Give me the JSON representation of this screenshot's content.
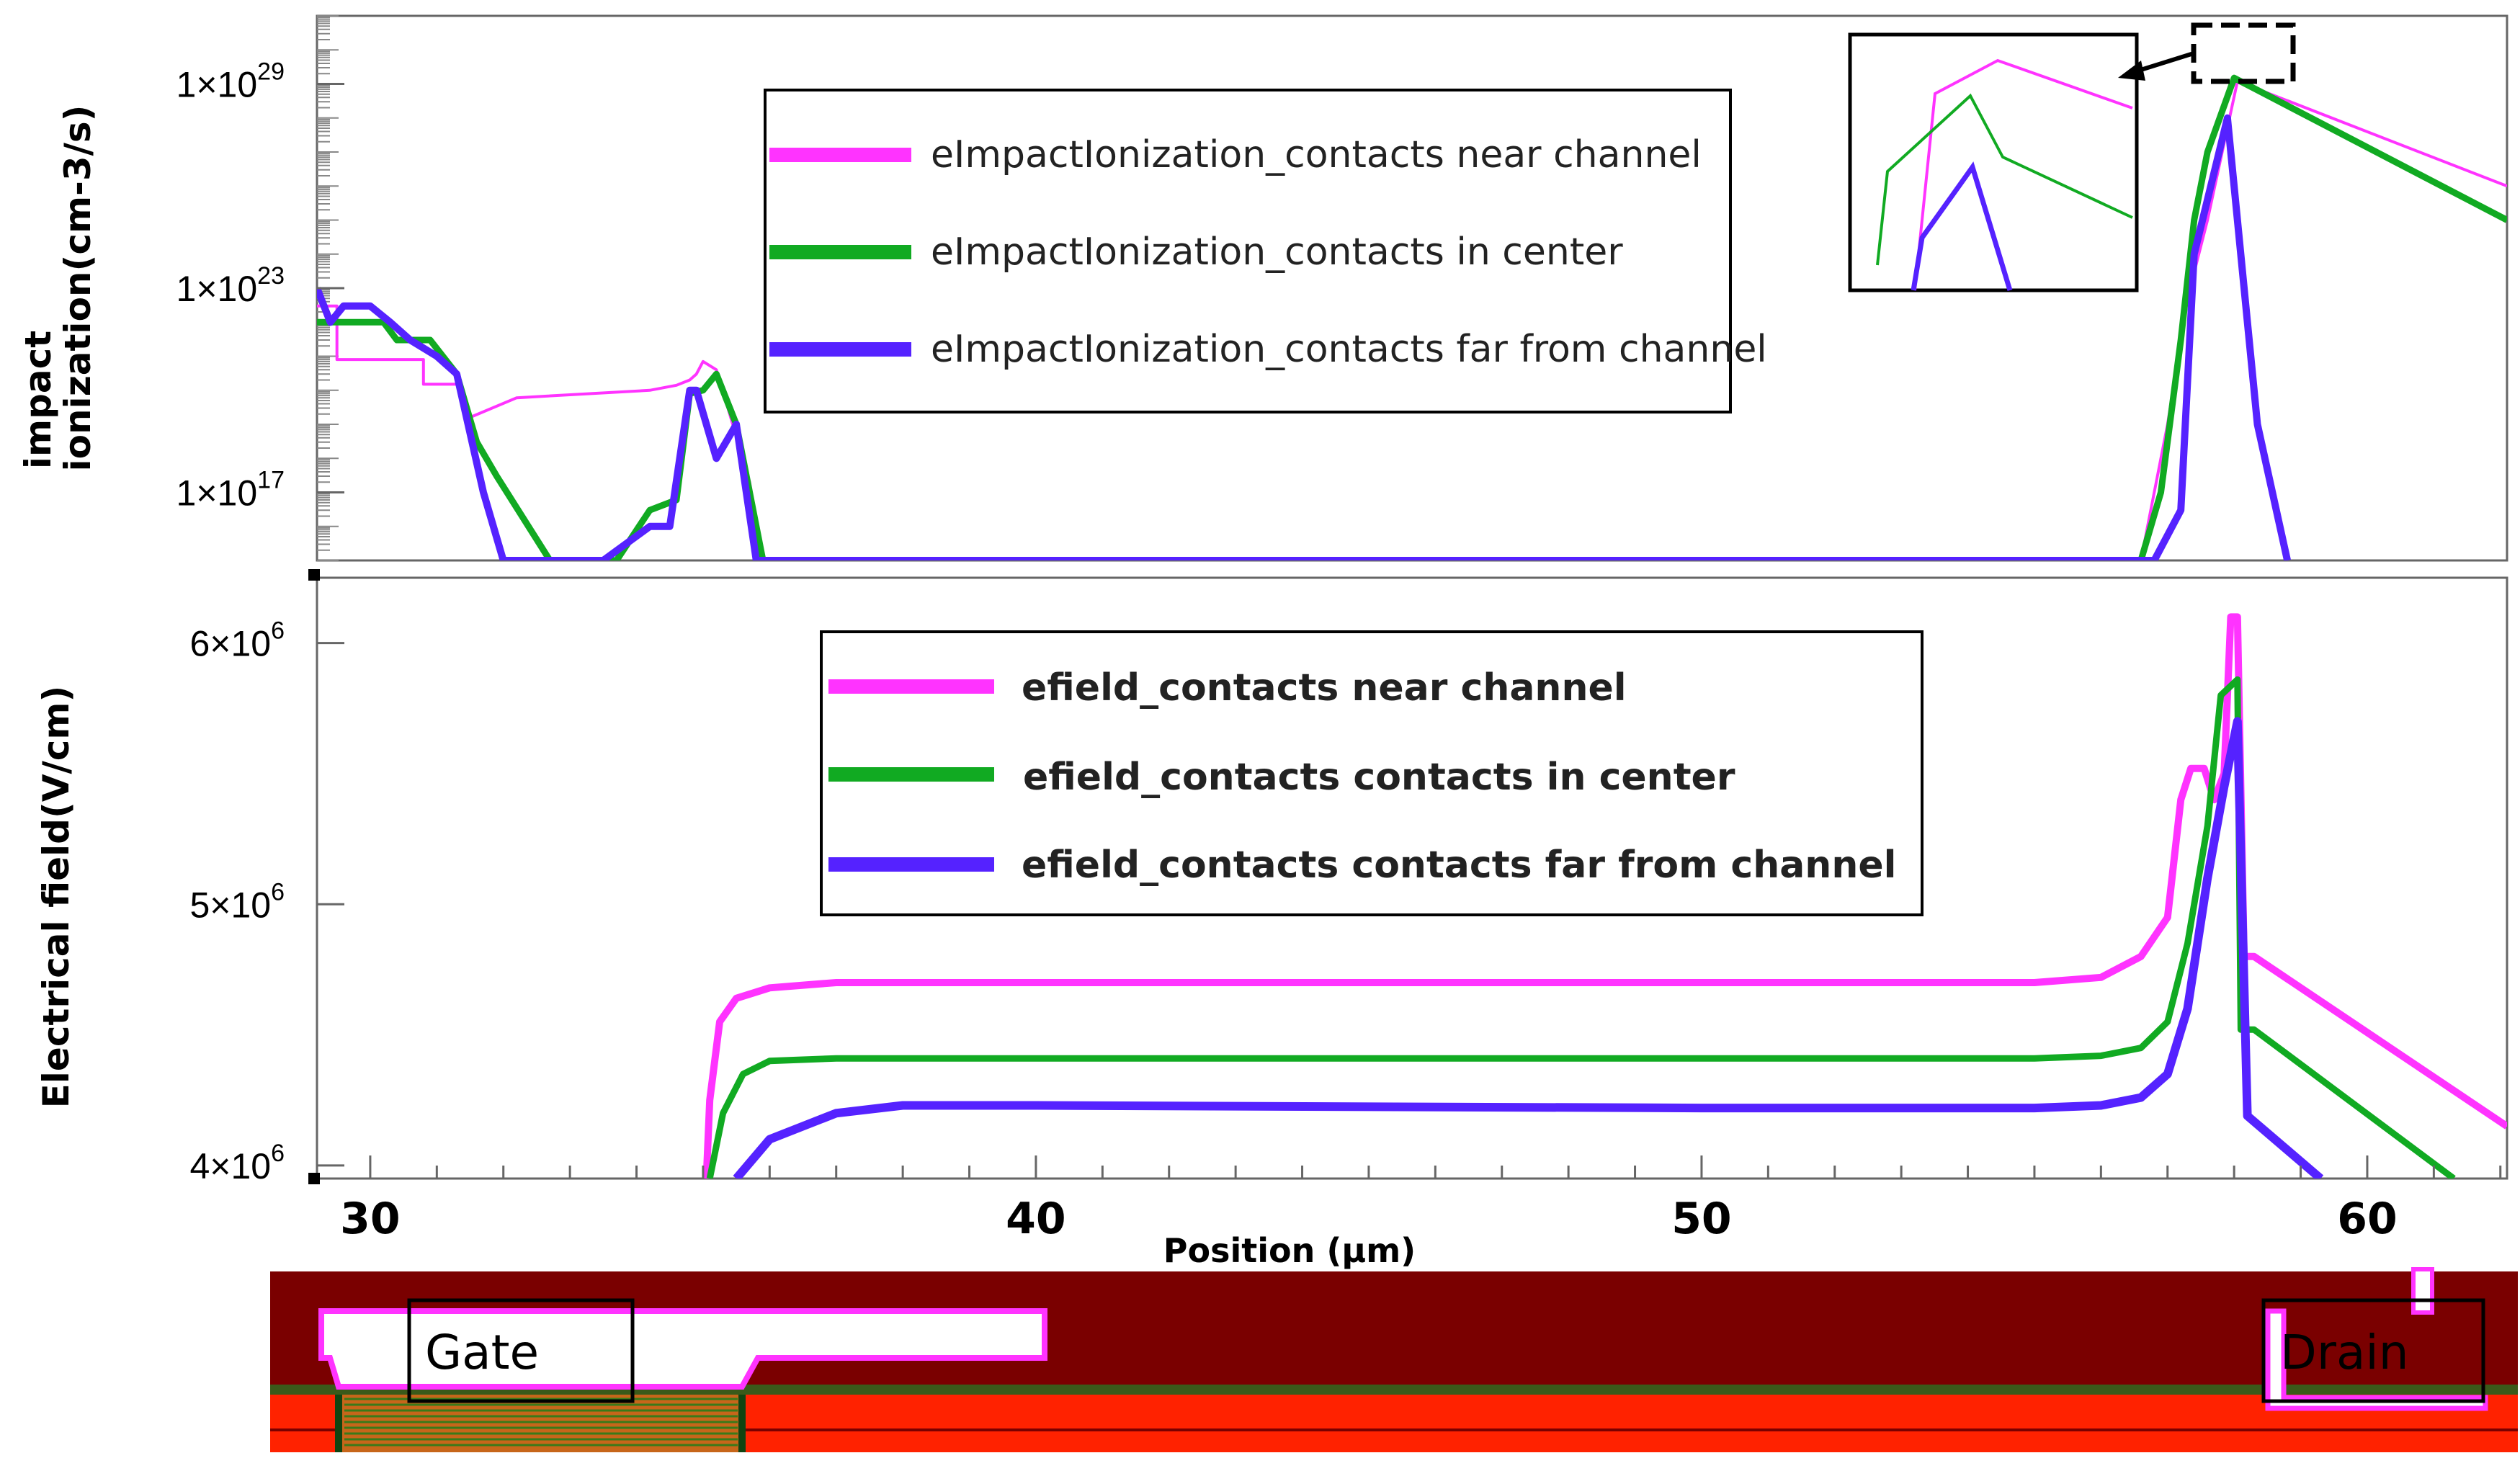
{
  "chart_data": [
    {
      "type": "line",
      "title": "",
      "xlabel": "",
      "ylabel_lines": [
        "impact",
        "ionization(cm-3/s)"
      ],
      "yscale": "log",
      "xlim": [
        29.2,
        62.1
      ],
      "ylim": [
        1000000000000000.0,
        1e+31
      ],
      "y_ticks": [
        {
          "value": 1e+29,
          "base": "1×10",
          "exp": "29"
        },
        {
          "value": 1e+23,
          "base": "1×10",
          "exp": "23"
        },
        {
          "value": 1e+17,
          "base": "1×10",
          "exp": "17"
        }
      ],
      "legend_position": "top-center",
      "series": [
        {
          "name": "eImpactIonization_contacts near channel",
          "color": "#ff33ff",
          "x": [
            29.2,
            29.5,
            29.5,
            30.8,
            30.8,
            31.3,
            31.5,
            32.2,
            34.2,
            34.6,
            34.8,
            34.9,
            35.0,
            35.2,
            35.4,
            35.7,
            35.9,
            56.6,
            57.0,
            57.3,
            57.6,
            58.05,
            62.1
          ],
          "y": [
            3e+22,
            3e+22,
            8e+20,
            8e+20,
            1.5e+20,
            1.5e+20,
            1.6e+19,
            6e+19,
            1e+20,
            1.4e+20,
            2e+20,
            3e+20,
            7e+20,
            4e+20,
            2e+19,
            2e+17,
            1000000000000000.0,
            1000000000000000.0,
            1e+19,
            5e+22,
            1e+25,
            1.2e+29,
            1e+26
          ]
        },
        {
          "name": "eImpactIonization_contacts in center",
          "color": "#11aa22",
          "x": [
            29.2,
            29.6,
            30.2,
            30.4,
            30.9,
            31.3,
            31.6,
            31.9,
            32.7,
            33.7,
            34.2,
            34.6,
            34.8,
            35.0,
            35.2,
            35.5,
            35.9,
            56.6,
            56.9,
            57.2,
            57.4,
            57.6,
            58.0,
            62.1
          ],
          "y": [
            1e+22,
            1e+22,
            1e+22,
            3e+21,
            3e+21,
            3e+20,
            3e+18,
            3e+17,
            1000000000000000.0,
            1000000000000000.0,
            3e+16,
            6e+16,
            8e+19,
            1e+20,
            3e+20,
            1e+19,
            1000000000000000.0,
            1000000000000000.0,
            1e+17,
            3e+21,
            1e+25,
            1e+27,
            1.5e+29,
            1e+25
          ]
        },
        {
          "name": "eImpactIonization_contacts far from channel",
          "color": "#5522ff",
          "x": [
            29.2,
            29.4,
            29.6,
            30.0,
            30.3,
            30.6,
            31.0,
            31.3,
            31.7,
            32.0,
            32.8,
            33.5,
            34.2,
            34.5,
            34.8,
            34.9,
            35.2,
            35.5,
            35.8,
            56.8,
            57.2,
            57.4,
            57.9,
            58.35,
            58.8
          ],
          "y": [
            1e+23,
            1e+22,
            3e+22,
            3e+22,
            1e+22,
            3e+21,
            1e+21,
            3e+20,
            1e+17,
            1000000000000000.0,
            1000000000000000.0,
            1000000000000000.0,
            1e+16,
            1e+16,
            1e+20,
            1e+20,
            1e+18,
            1e+19,
            1000000000000000.0,
            1000000000000000.0,
            3e+16,
            1e+24,
            1e+28,
            1e+19,
            1000000000000000.0
          ]
        }
      ]
    },
    {
      "type": "line",
      "title": "",
      "xlabel": "Position (µm)",
      "ylabel": "Electrical field(V/cm)",
      "xlim": [
        29.2,
        62.1
      ],
      "ylim": [
        3950000,
        6250000
      ],
      "x_ticks": [
        "30",
        "40",
        "50",
        "60"
      ],
      "x_tick_values": [
        30,
        40,
        50,
        60
      ],
      "y_ticks": [
        {
          "value": 6000000,
          "base": "6×10",
          "exp": "6"
        },
        {
          "value": 5000000,
          "base": "5×10",
          "exp": "6"
        },
        {
          "value": 4000000,
          "base": "4×10",
          "exp": "6"
        }
      ],
      "legend_position": "top-center",
      "series": [
        {
          "name": "efield_contacts near channel",
          "color": "#ff33ff",
          "x": [
            35.05,
            35.1,
            35.25,
            35.5,
            36.0,
            37.0,
            40.0,
            50.0,
            55.0,
            56.0,
            56.6,
            57.0,
            57.2,
            57.35,
            57.55,
            57.7,
            57.85,
            57.95,
            58.0,
            58.05,
            58.15,
            58.2,
            58.3,
            62.1
          ],
          "y": [
            3950000,
            4250000,
            4550000,
            4640000,
            4680000,
            4700000,
            4700000,
            4700000,
            4700000,
            4720000,
            4800000,
            4950000,
            5400000,
            5520000,
            5520000,
            5400000,
            5500000,
            6100000,
            6100000,
            6100000,
            4800000,
            4800000,
            4800000,
            4150000
          ]
        },
        {
          "name": "efield_contacts contacts in center",
          "color": "#11aa22",
          "x": [
            35.1,
            35.3,
            35.6,
            36.0,
            37.0,
            40.0,
            50.0,
            55.0,
            56.0,
            56.6,
            57.0,
            57.3,
            57.6,
            57.8,
            58.05,
            58.1,
            58.3,
            61.3
          ],
          "y": [
            3950000,
            4200000,
            4350000,
            4400000,
            4410000,
            4410000,
            4410000,
            4410000,
            4420000,
            4450000,
            4550000,
            4850000,
            5300000,
            5800000,
            5860000,
            4520000,
            4520000,
            3950000
          ]
        },
        {
          "name": "efield_contacts contacts far from channel",
          "color": "#5522ff",
          "x": [
            35.5,
            36.0,
            37.0,
            38.0,
            40.0,
            50.0,
            55.0,
            56.0,
            56.6,
            57.0,
            57.3,
            57.6,
            57.85,
            58.05,
            58.2,
            59.3
          ],
          "y": [
            3950000,
            4100000,
            4200000,
            4230000,
            4230000,
            4220000,
            4220000,
            4230000,
            4260000,
            4350000,
            4600000,
            5100000,
            5450000,
            5700000,
            4190000,
            3950000
          ]
        }
      ]
    }
  ],
  "device_labels": {
    "gate": "Gate",
    "drain": "Drain"
  }
}
